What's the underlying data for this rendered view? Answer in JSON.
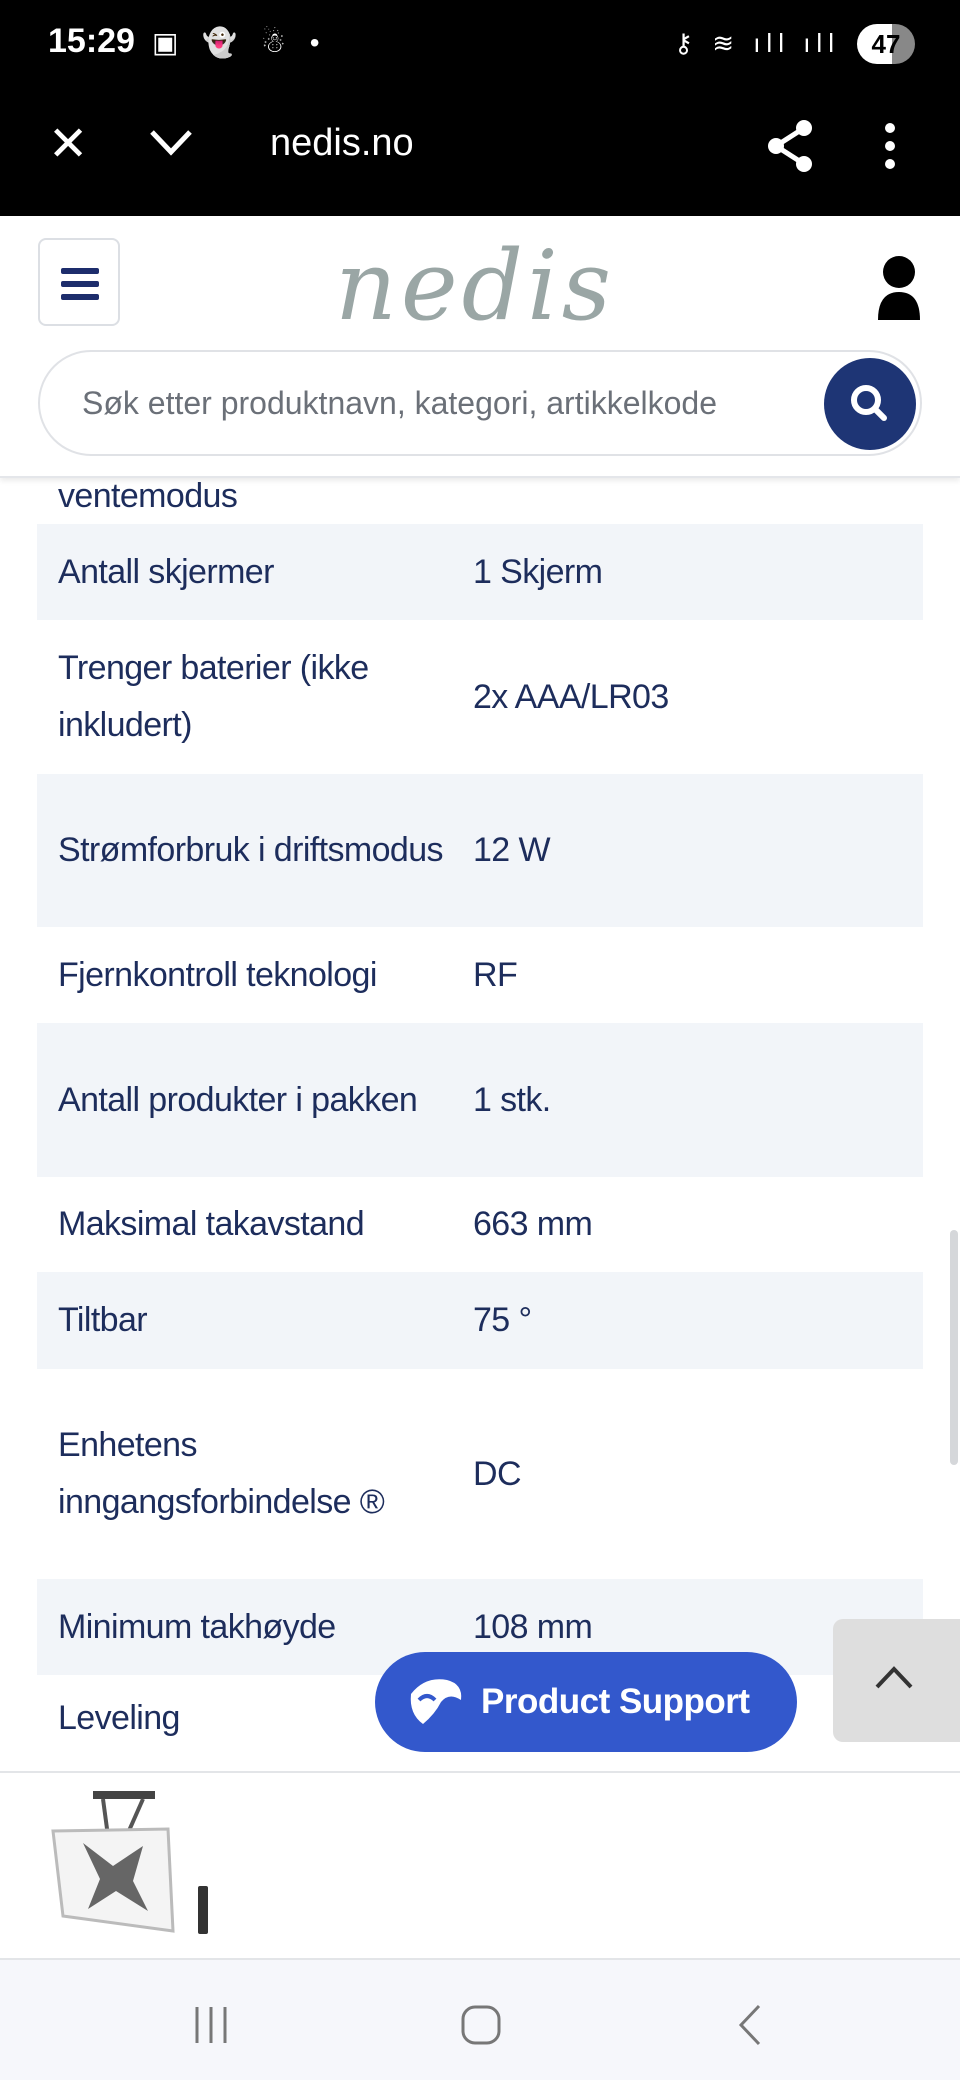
{
  "status_bar": {
    "time": "15:29",
    "left_icons": [
      "screenshot-icon",
      "snapchat-icon",
      "notification-icon",
      "dot-icon"
    ],
    "right_icons": [
      "vpn-key-icon",
      "wifi-icon",
      "signal-icon",
      "signal-icon"
    ],
    "battery": "47"
  },
  "browser": {
    "url": "nedis.no"
  },
  "header": {
    "logo": "nedis",
    "search_placeholder": "Søk etter produktnavn, kategori, artikkelkode"
  },
  "specs": {
    "partial_top": "ventemodus",
    "rows": [
      {
        "label": "Antall skjermer",
        "value": "1 Skjerm"
      },
      {
        "label": "Trenger baterier (ikke inkludert)",
        "value": "2x AAA/LR03"
      },
      {
        "label": "Strømforbruk i driftsmodus",
        "value": "12 W"
      },
      {
        "label": "Fjernkontroll teknologi",
        "value": "RF"
      },
      {
        "label": "Antall produkter i pakken",
        "value": "1 stk."
      },
      {
        "label": "Maksimal takavstand",
        "value": "663 mm"
      },
      {
        "label": "Tiltbar",
        "value": "75 °"
      },
      {
        "label": "Enhetens inngangsforbindelse ®",
        "value": "DC"
      },
      {
        "label": "Minimum takhøyde",
        "value": "108 mm"
      },
      {
        "label": "Leveling",
        "value": ""
      }
    ]
  },
  "product_support": {
    "label": "Product Support",
    "color": "#3358cc"
  },
  "colors": {
    "text": "#1d2d5c",
    "row_alt": "#f2f5f9",
    "search_button": "#1e3575"
  }
}
